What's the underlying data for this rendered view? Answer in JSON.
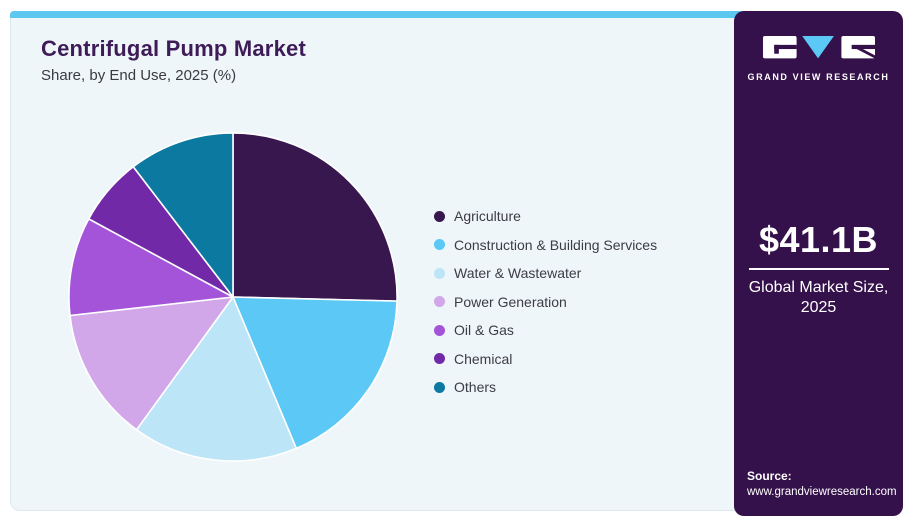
{
  "header": {
    "title": "Centrifugal Pump Market",
    "subtitle": "Share, by End Use, 2025 (%)"
  },
  "chart_data": {
    "type": "pie",
    "title": "Centrifugal Pump Market Share, by End Use, 2025 (%)",
    "unit": "%",
    "start_angle_deg": -90,
    "direction": "clockwise",
    "legend_position": "right",
    "series": [
      {
        "name": "Agriculture",
        "value": 25.4,
        "color": "#38164E"
      },
      {
        "name": "Construction & Building Services",
        "value": 18.3,
        "color": "#5BC8F5"
      },
      {
        "name": "Water & Wastewater",
        "value": 16.3,
        "color": "#BCE5F8"
      },
      {
        "name": "Power Generation",
        "value": 13.2,
        "color": "#D1A7EA"
      },
      {
        "name": "Oil & Gas",
        "value": 9.7,
        "color": "#A454D8"
      },
      {
        "name": "Chemical",
        "value": 6.7,
        "color": "#7229A8"
      },
      {
        "name": "Others",
        "value": 10.4,
        "color": "#0C79A1"
      }
    ]
  },
  "sidebar": {
    "logo_text": "GRAND VIEW RESEARCH",
    "market_size_value": "$41.1B",
    "market_size_label_line1": "Global Market Size,",
    "market_size_label_line2": "2025",
    "source_label": "Source:",
    "source_url": "www.grandviewresearch.com"
  },
  "colors": {
    "accent_bar": "#5BC8F0",
    "card_bg": "#EFF6FA",
    "sidebar_bg": "#34114A",
    "title_text": "#3E1C58",
    "body_text": "#3C3C43",
    "slice_stroke": "#FFFFFF",
    "logo_triangle": "#5BC8F5"
  }
}
